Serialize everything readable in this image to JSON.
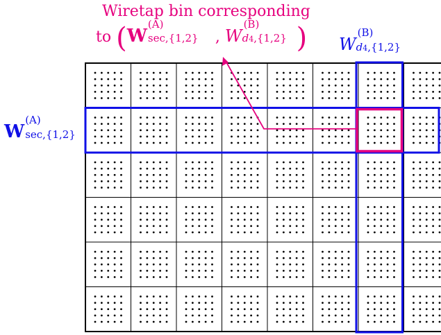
{
  "annotation": {
    "line1": "Wiretap bin corresponding",
    "line2_prefix": "to",
    "color": "#e6007e"
  },
  "labels": {
    "W_main": "W",
    "sec_sub": "sec,{1,2}",
    "A_sup": "(A)",
    "w_main": "W",
    "d4_sub": "d",
    "d4_subsub": "4",
    "d4_set": ",{1,2}",
    "B_sup": "(B)",
    "comma": ","
  },
  "grid": {
    "rows": 6,
    "cols": 8,
    "dots_per_cell_side": 5,
    "highlight_row": 2,
    "highlight_col": 7,
    "row_color": "#1010e6",
    "col_color": "#1010e6",
    "bin_color": "#e6007e"
  }
}
